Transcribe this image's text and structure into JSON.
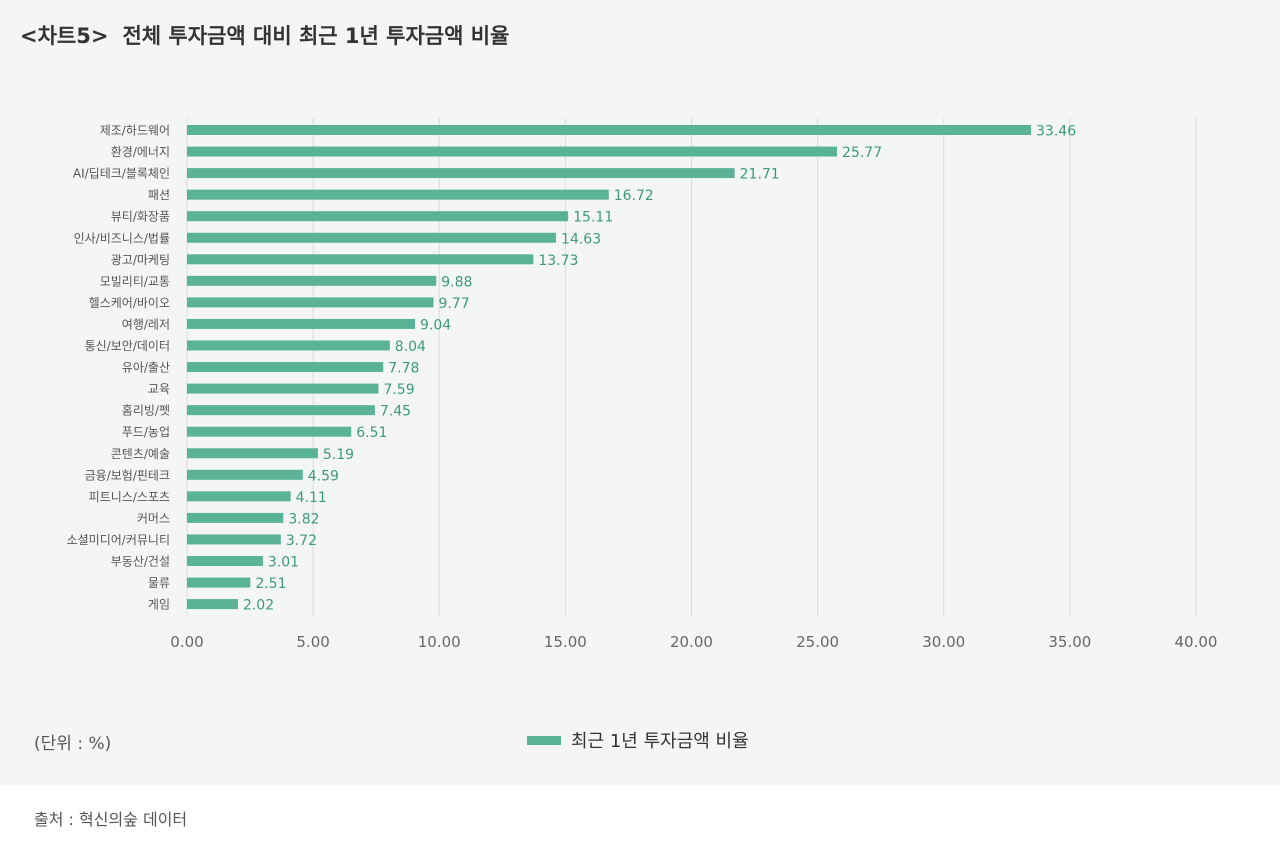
{
  "colors": {
    "bar": "#5ab396",
    "value_label": "#3d9a79",
    "grid": "#d8dcda",
    "axis_text": "#666666",
    "category_text": "#555555"
  },
  "header": {
    "tag": "<차트5>",
    "title": "전체 투자금액 대비 최근 1년 투자금액 비율"
  },
  "unit_note": "(단위 : %)",
  "source_note": "출처 : 혁신의숲 데이터",
  "chart_data": {
    "type": "bar",
    "orientation": "horizontal",
    "categories": [
      "제조/하드웨어",
      "환경/에너지",
      "AI/딥테크/블록체인",
      "패션",
      "뷰티/화장품",
      "인사/비즈니스/법률",
      "광고/마케팅",
      "모빌리티/교통",
      "헬스케어/바이오",
      "여행/레저",
      "통신/보안/데이터",
      "유아/출산",
      "교육",
      "홈리빙/펫",
      "푸드/농업",
      "콘텐츠/예술",
      "금융/보험/핀테크",
      "피트니스/스포츠",
      "커머스",
      "소셜미디어/커뮤니티",
      "부동산/건설",
      "물류",
      "게임"
    ],
    "series": [
      {
        "name": "최근 1년 투자금액 비율",
        "values": [
          33.46,
          25.77,
          21.71,
          16.72,
          15.11,
          14.63,
          13.73,
          9.88,
          9.77,
          9.04,
          8.04,
          7.78,
          7.59,
          7.45,
          6.51,
          5.19,
          4.59,
          4.11,
          3.82,
          3.72,
          3.01,
          2.51,
          2.02
        ],
        "labels": [
          "33.46",
          "25.77",
          "21.71",
          "16.72",
          "15.11",
          "14.63",
          "13.73",
          "9.88",
          "9.77",
          "9.04",
          "8.04",
          "7.78",
          "7.59",
          "7.45",
          "6.51",
          "5.19",
          "4.59",
          "4.11",
          "3.82",
          "3.72",
          "3.01",
          "2.51",
          "2.02"
        ]
      }
    ],
    "xlim": [
      0,
      40
    ],
    "xticks": [
      0,
      5,
      10,
      15,
      20,
      25,
      30,
      35,
      40
    ],
    "xtick_labels": [
      "0.00",
      "5.00",
      "10.00",
      "15.00",
      "20.00",
      "25.00",
      "30.00",
      "35.00",
      "40.00"
    ],
    "grid": true,
    "legend_position": "bottom-center"
  }
}
